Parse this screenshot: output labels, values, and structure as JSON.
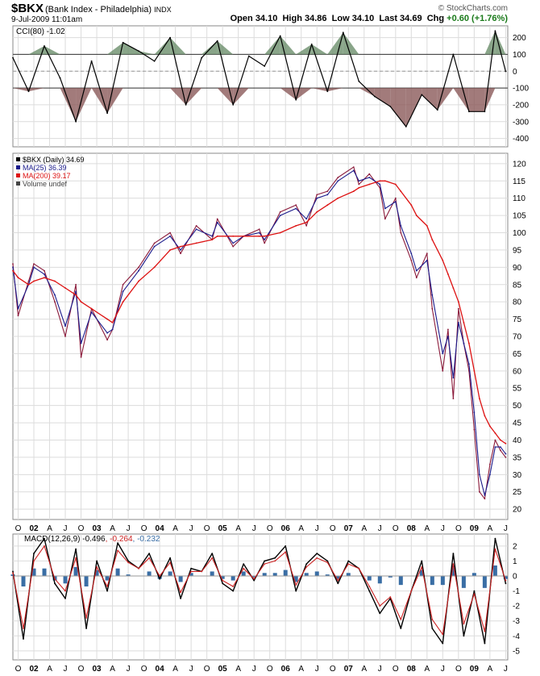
{
  "header": {
    "symbol": "$BKX",
    "name": "(Bank Index - Philadelphia)",
    "exchange": "INDX",
    "brand": "© StockCharts.com",
    "datetime": "9-Jul-2009 11:01am",
    "open_label": "Open",
    "open": "34.10",
    "high_label": "High",
    "high": "34.86",
    "low_label": "Low",
    "low": "34.10",
    "last_label": "Last",
    "last": "34.69",
    "chg_label": "Chg",
    "chg": "+0.60 (+1.76%)",
    "colors": {
      "up": "#1a7a1a"
    }
  },
  "chart_data": [
    {
      "type": "line",
      "panel": "CCI",
      "legend": "CCI(80) -1.02",
      "ylim": [
        -450,
        270
      ],
      "yticks": [
        200,
        100,
        0,
        -100,
        -200,
        -300,
        -400
      ],
      "reference_lines": [
        100,
        0,
        -100
      ],
      "colors": {
        "line": "#000000",
        "above": "#6b8f6b",
        "below": "#8b5a5a"
      },
      "x": [
        "2001-09",
        "2001-12",
        "2002-03",
        "2002-06",
        "2002-09",
        "2002-12",
        "2003-03",
        "2003-06",
        "2003-09",
        "2003-12",
        "2004-03",
        "2004-06",
        "2004-09",
        "2004-12",
        "2005-03",
        "2005-06",
        "2005-09",
        "2005-12",
        "2006-03",
        "2006-06",
        "2006-09",
        "2006-12",
        "2007-03",
        "2007-06",
        "2007-09",
        "2007-12",
        "2008-03",
        "2008-06",
        "2008-09",
        "2008-12",
        "2009-03",
        "2009-05",
        "2009-07"
      ],
      "values": [
        80,
        -120,
        150,
        -40,
        -300,
        60,
        -250,
        170,
        120,
        60,
        200,
        -200,
        80,
        180,
        -200,
        90,
        30,
        210,
        -170,
        160,
        -120,
        230,
        -60,
        -150,
        -210,
        -330,
        -140,
        -230,
        100,
        -240,
        -240,
        240,
        -1
      ]
    },
    {
      "type": "line",
      "panel": "Price",
      "legend": [
        "$BKX (Daily) 34.69",
        "MA(25) 36.39",
        "MA(200) 39.17",
        "Volume undef"
      ],
      "ylim": [
        17,
        123
      ],
      "yticks": [
        120,
        115,
        110,
        105,
        100,
        95,
        90,
        85,
        80,
        75,
        70,
        65,
        60,
        55,
        50,
        45,
        40,
        35,
        30,
        25,
        20
      ],
      "xticks": [
        "O",
        "02",
        "A",
        "J",
        "O",
        "03",
        "A",
        "J",
        "O",
        "04",
        "A",
        "J",
        "O",
        "05",
        "A",
        "J",
        "O",
        "06",
        "A",
        "J",
        "O",
        "07",
        "A",
        "J",
        "O",
        "08",
        "A",
        "J",
        "O",
        "09",
        "A",
        "J"
      ],
      "colors": {
        "price": "#8b1a3a",
        "ma25": "#1a1a8b",
        "ma200": "#dd1111"
      },
      "x": [
        "2001-09",
        "2001-10",
        "2001-12",
        "2002-01",
        "2002-03",
        "2002-05",
        "2002-07",
        "2002-09",
        "2002-10",
        "2002-12",
        "2003-03",
        "2003-04",
        "2003-06",
        "2003-09",
        "2003-12",
        "2004-03",
        "2004-05",
        "2004-08",
        "2004-11",
        "2004-12",
        "2005-03",
        "2005-05",
        "2005-08",
        "2005-09",
        "2005-12",
        "2006-03",
        "2006-05",
        "2006-07",
        "2006-09",
        "2006-11",
        "2007-02",
        "2007-03",
        "2007-05",
        "2007-07",
        "2007-08",
        "2007-10",
        "2007-11",
        "2008-01",
        "2008-02",
        "2008-04",
        "2008-05",
        "2008-07",
        "2008-08",
        "2008-09",
        "2008-10",
        "2008-11",
        "2008-12",
        "2009-01",
        "2009-02",
        "2009-03",
        "2009-04",
        "2009-05",
        "2009-06",
        "2009-07"
      ],
      "series": [
        {
          "name": "$BKX (Daily)",
          "values": [
            91,
            76,
            86,
            91,
            89,
            80,
            70,
            85,
            64,
            78,
            69,
            72,
            85,
            90,
            97,
            100,
            94,
            102,
            98,
            104,
            96,
            99,
            101,
            97,
            106,
            108,
            102,
            111,
            112,
            116,
            119,
            114,
            117,
            113,
            104,
            110,
            100,
            92,
            87,
            94,
            78,
            60,
            72,
            52,
            78,
            68,
            60,
            43,
            25,
            23,
            33,
            40,
            37,
            35
          ]
        },
        {
          "name": "MA(25)",
          "values": [
            90,
            78,
            85,
            90,
            88,
            82,
            73,
            83,
            68,
            77,
            71,
            72,
            83,
            89,
            96,
            99,
            95,
            101,
            99,
            103,
            97,
            99,
            100,
            98,
            105,
            107,
            104,
            110,
            111,
            115,
            118,
            115,
            116,
            114,
            107,
            109,
            102,
            94,
            89,
            92,
            82,
            65,
            70,
            58,
            74,
            68,
            62,
            48,
            30,
            24,
            30,
            38,
            38,
            36
          ]
        },
        {
          "name": "MA(200)",
          "values": [
            89,
            87,
            85,
            86,
            87,
            86,
            84,
            82,
            80,
            78,
            75,
            74,
            80,
            86,
            90,
            95,
            96,
            97,
            98,
            99,
            99,
            99,
            99,
            99,
            100,
            102,
            103,
            106,
            108,
            110,
            112,
            113,
            114,
            115,
            115,
            114,
            112,
            108,
            105,
            102,
            98,
            92,
            88,
            84,
            80,
            74,
            68,
            60,
            52,
            47,
            44,
            42,
            40,
            39
          ]
        }
      ]
    },
    {
      "type": "line",
      "panel": "MACD",
      "legend": [
        "MACD(12,26,9) -0.496",
        "-0.264",
        "-0.232"
      ],
      "ylim": [
        -5.6,
        2.8
      ],
      "yticks": [
        2,
        1,
        0,
        -1,
        -2,
        -3,
        -4,
        -5
      ],
      "xticks": [
        "O",
        "02",
        "A",
        "J",
        "O",
        "03",
        "A",
        "J",
        "O",
        "04",
        "A",
        "J",
        "O",
        "05",
        "A",
        "J",
        "O",
        "06",
        "A",
        "J",
        "O",
        "07",
        "A",
        "J",
        "O",
        "08",
        "A",
        "J",
        "O",
        "09",
        "A",
        "J"
      ],
      "colors": {
        "macd": "#000000",
        "signal": "#cc2222",
        "histogram": "#3a6ea5"
      },
      "x": [
        "2001-09",
        "2001-11",
        "2002-01",
        "2002-03",
        "2002-05",
        "2002-07",
        "2002-09",
        "2002-11",
        "2003-01",
        "2003-03",
        "2003-05",
        "2003-07",
        "2003-09",
        "2003-11",
        "2004-01",
        "2004-03",
        "2004-05",
        "2004-07",
        "2004-09",
        "2004-11",
        "2005-01",
        "2005-03",
        "2005-05",
        "2005-07",
        "2005-09",
        "2005-11",
        "2006-01",
        "2006-03",
        "2006-05",
        "2006-07",
        "2006-09",
        "2006-11",
        "2007-01",
        "2007-03",
        "2007-05",
        "2007-07",
        "2007-09",
        "2007-11",
        "2008-01",
        "2008-03",
        "2008-05",
        "2008-07",
        "2008-09",
        "2008-11",
        "2009-01",
        "2009-03",
        "2009-05",
        "2009-07"
      ],
      "series": [
        {
          "name": "MACD",
          "values": [
            0.3,
            -4.2,
            1.5,
            2.5,
            -0.5,
            -1.5,
            1.8,
            -3.5,
            1.0,
            -1.0,
            2.2,
            1.0,
            0.5,
            1.5,
            -0.2,
            1.2,
            -1.5,
            0.5,
            0.3,
            1.5,
            -0.5,
            -1.0,
            0.8,
            -0.3,
            1.0,
            1.2,
            2.0,
            -1.0,
            0.8,
            1.5,
            1.0,
            -0.5,
            1.0,
            0.5,
            -1.0,
            -2.5,
            -1.5,
            -3.5,
            -1.0,
            1.0,
            -3.5,
            -4.5,
            1.5,
            -4.0,
            -1.0,
            -4.5,
            2.5,
            -0.5
          ]
        },
        {
          "name": "Signal",
          "values": [
            0.2,
            -3.5,
            1.0,
            2.0,
            -0.2,
            -1.0,
            1.2,
            -2.8,
            0.6,
            -0.7,
            1.7,
            0.9,
            0.5,
            1.2,
            0.0,
            0.9,
            -1.1,
            0.3,
            0.3,
            1.2,
            -0.3,
            -0.7,
            0.5,
            -0.2,
            0.8,
            1.0,
            1.6,
            -0.6,
            0.6,
            1.2,
            0.9,
            -0.3,
            0.8,
            0.5,
            -0.7,
            -2.0,
            -1.4,
            -2.9,
            -1.0,
            0.6,
            -2.9,
            -3.9,
            0.8,
            -3.2,
            -1.2,
            -3.7,
            1.8,
            -0.3
          ]
        }
      ]
    }
  ]
}
